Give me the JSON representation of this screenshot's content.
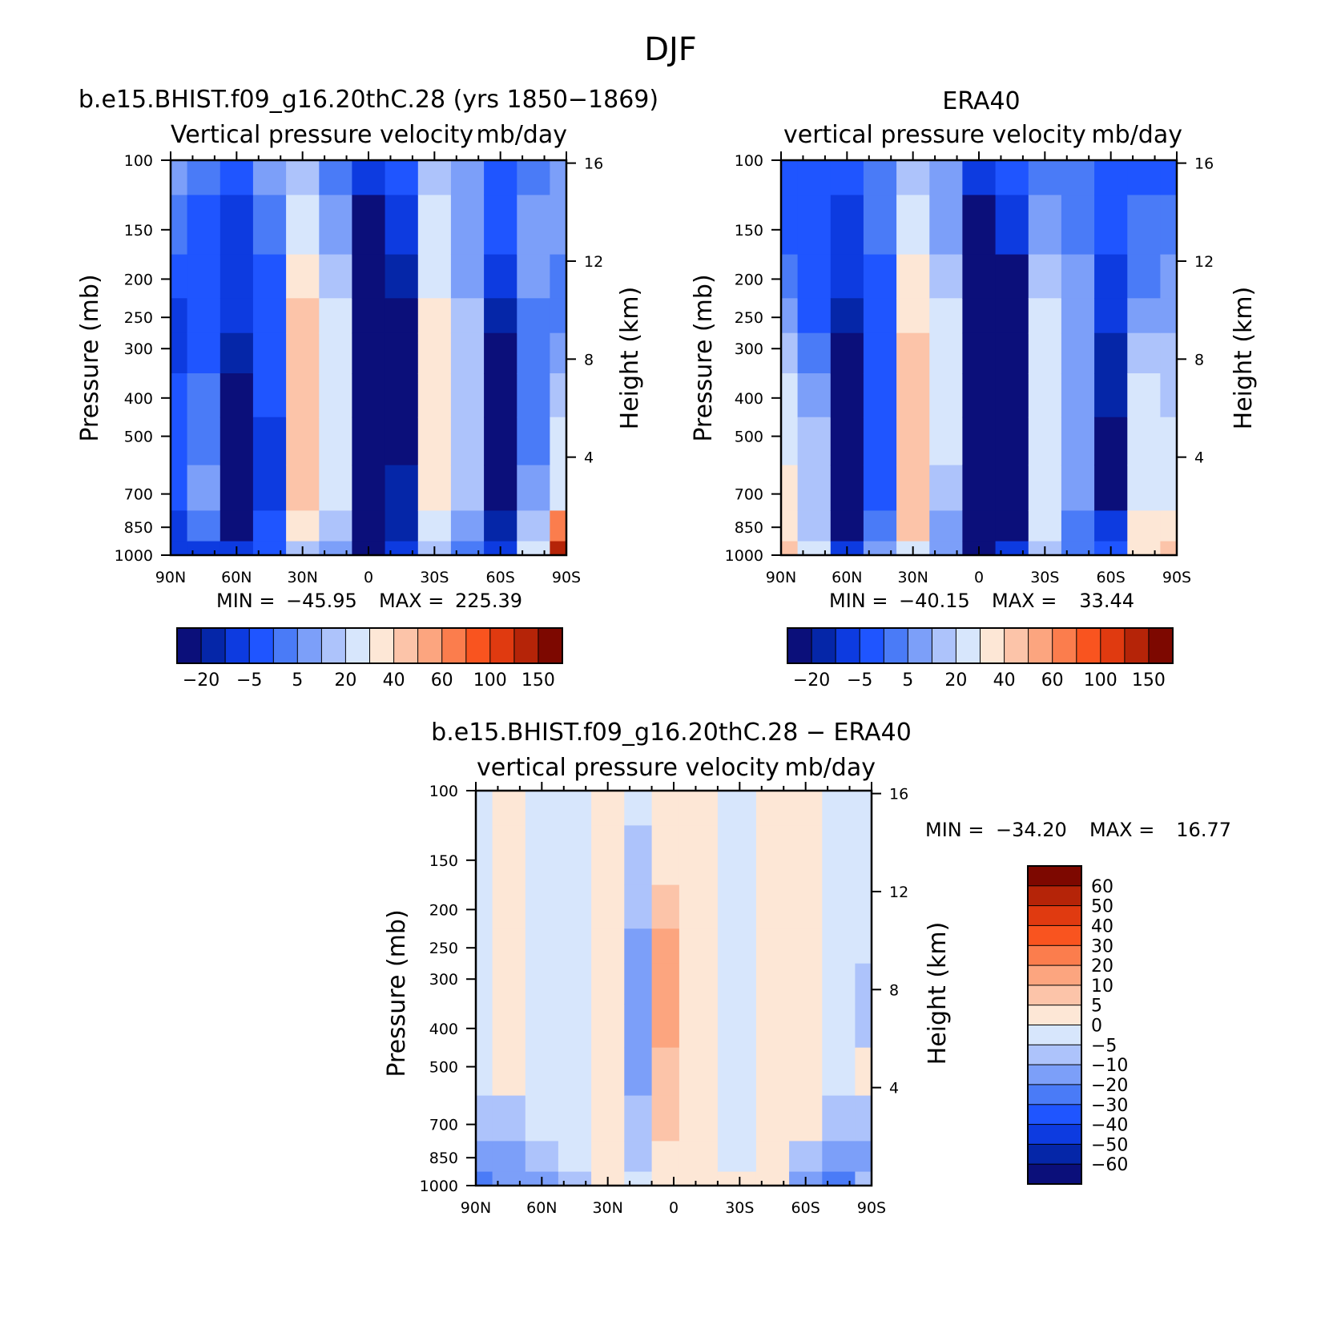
{
  "figure": {
    "title": "DJF"
  },
  "chart_data": [
    {
      "type": "heatmap",
      "title": "b.e15.BHIST.f09_g16.20thC.28 (yrs 1850-1869)",
      "subtitle_left": "Vertical pressure velocity",
      "subtitle_right": "mb/day",
      "ylabel": "Pressure (mb)",
      "y2label": "Height (km)",
      "x_ticks": [
        "90N",
        "60N",
        "30N",
        "0",
        "30S",
        "60S",
        "90S"
      ],
      "y_ticks": [
        100,
        150,
        200,
        250,
        300,
        400,
        500,
        700,
        850,
        1000
      ],
      "y2_ticks": [
        16,
        12,
        8,
        4
      ],
      "min_label": "MIN =",
      "min": "-45.95",
      "max_label": "MAX =",
      "max": "225.39",
      "colorbar_labels": [
        "-20",
        "-5",
        "5",
        "20",
        "40",
        "60",
        "100",
        "150"
      ],
      "colorbar_colors": [
        "#0b0f7a",
        "#0526a8",
        "#0d3be0",
        "#1f55ff",
        "#4a7bf7",
        "#7c9ff9",
        "#adc3fb",
        "#d7e6fc",
        "#fde7d6",
        "#fcc4a9",
        "#fca57f",
        "#fb7d4d",
        "#f9541f",
        "#e03a10",
        "#b52408",
        "#7d0800"
      ],
      "profile": [
        {
          "lat": 90,
          "values": [
            5,
            0,
            -5,
            -10,
            -10,
            -5,
            -5,
            -5,
            -10,
            -10
          ]
        },
        {
          "lat": 75,
          "values": [
            0,
            -5,
            -5,
            -5,
            -5,
            0,
            0,
            5,
            0,
            -10
          ]
        },
        {
          "lat": 60,
          "values": [
            -5,
            -10,
            -10,
            -10,
            -15,
            -20,
            -20,
            -20,
            -20,
            -10
          ]
        },
        {
          "lat": 45,
          "values": [
            5,
            0,
            -5,
            -5,
            -5,
            -5,
            -10,
            -10,
            -5,
            -5
          ]
        },
        {
          "lat": 30,
          "values": [
            10,
            20,
            30,
            35,
            40,
            40,
            40,
            40,
            30,
            10
          ]
        },
        {
          "lat": 15,
          "values": [
            0,
            5,
            10,
            15,
            20,
            20,
            15,
            15,
            10,
            5
          ]
        },
        {
          "lat": 0,
          "values": [
            -10,
            -20,
            -30,
            -35,
            -40,
            -40,
            -40,
            -40,
            -35,
            -20
          ]
        },
        {
          "lat": -15,
          "values": [
            -5,
            -10,
            -15,
            -20,
            -20,
            -20,
            -20,
            -15,
            -15,
            -10
          ]
        },
        {
          "lat": -30,
          "values": [
            10,
            15,
            20,
            25,
            30,
            30,
            30,
            25,
            20,
            10
          ]
        },
        {
          "lat": -45,
          "values": [
            5,
            5,
            5,
            10,
            10,
            10,
            10,
            10,
            5,
            0
          ]
        },
        {
          "lat": -60,
          "values": [
            -5,
            -5,
            -10,
            -15,
            -20,
            -20,
            -20,
            -20,
            -15,
            -10
          ]
        },
        {
          "lat": -75,
          "values": [
            0,
            5,
            5,
            0,
            0,
            0,
            0,
            5,
            10,
            20
          ]
        },
        {
          "lat": -90,
          "values": [
            5,
            5,
            0,
            0,
            5,
            10,
            15,
            20,
            60,
            150
          ]
        }
      ]
    },
    {
      "type": "heatmap",
      "title": "ERA40",
      "subtitle_left": "vertical pressure velocity",
      "subtitle_right": "mb/day",
      "ylabel": "Pressure (mb)",
      "y2label": "Height (km)",
      "x_ticks": [
        "90N",
        "60N",
        "30N",
        "0",
        "30S",
        "60S",
        "90S"
      ],
      "y_ticks": [
        100,
        150,
        200,
        250,
        300,
        400,
        500,
        700,
        850,
        1000
      ],
      "y2_ticks": [
        16,
        12,
        8,
        4
      ],
      "min_label": "MIN =",
      "min": "-40.15",
      "max_label": "MAX =",
      "max": "33.44",
      "colorbar_labels": [
        "-20",
        "-5",
        "5",
        "20",
        "40",
        "60",
        "100",
        "150"
      ],
      "colorbar_colors": [
        "#0b0f7a",
        "#0526a8",
        "#0d3be0",
        "#1f55ff",
        "#4a7bf7",
        "#7c9ff9",
        "#adc3fb",
        "#d7e6fc",
        "#fde7d6",
        "#fcc4a9",
        "#fca57f",
        "#fb7d4d",
        "#f9541f",
        "#e03a10",
        "#b52408",
        "#7d0800"
      ],
      "profile": [
        {
          "lat": 90,
          "values": [
            -5,
            -5,
            0,
            5,
            10,
            15,
            20,
            25,
            30,
            40
          ]
        },
        {
          "lat": 75,
          "values": [
            -5,
            -5,
            -5,
            -5,
            0,
            5,
            10,
            10,
            10,
            15
          ]
        },
        {
          "lat": 60,
          "values": [
            -5,
            -10,
            -10,
            -15,
            -20,
            -20,
            -20,
            -20,
            -20,
            -10
          ]
        },
        {
          "lat": 45,
          "values": [
            0,
            0,
            -5,
            -5,
            -5,
            -5,
            -5,
            -5,
            0,
            5
          ]
        },
        {
          "lat": 30,
          "values": [
            10,
            20,
            25,
            30,
            40,
            40,
            40,
            40,
            35,
            20
          ]
        },
        {
          "lat": 15,
          "values": [
            5,
            5,
            10,
            15,
            20,
            20,
            15,
            10,
            5,
            5
          ]
        },
        {
          "lat": 0,
          "values": [
            -10,
            -20,
            -25,
            -30,
            -30,
            -35,
            -35,
            -40,
            -40,
            -25
          ]
        },
        {
          "lat": -15,
          "values": [
            -5,
            -10,
            -20,
            -30,
            -40,
            -40,
            -40,
            -35,
            -20,
            -10
          ]
        },
        {
          "lat": -30,
          "values": [
            0,
            5,
            10,
            15,
            20,
            20,
            20,
            20,
            15,
            10
          ]
        },
        {
          "lat": -45,
          "values": [
            0,
            0,
            5,
            5,
            5,
            5,
            5,
            5,
            0,
            0
          ]
        },
        {
          "lat": -60,
          "values": [
            -5,
            -5,
            -10,
            -10,
            -15,
            -15,
            -20,
            -20,
            -10,
            -5
          ]
        },
        {
          "lat": -75,
          "values": [
            -5,
            0,
            0,
            5,
            10,
            15,
            20,
            20,
            25,
            30
          ]
        },
        {
          "lat": -90,
          "values": [
            -5,
            0,
            5,
            5,
            10,
            10,
            15,
            20,
            30,
            40
          ]
        }
      ]
    },
    {
      "type": "heatmap",
      "title": "b.e15.BHIST.f09_g16.20thC.28 - ERA40",
      "subtitle_left": "vertical pressure velocity",
      "subtitle_right": "mb/day",
      "ylabel": "Pressure (mb)",
      "y2label": "Height (km)",
      "x_ticks": [
        "90N",
        "60N",
        "30N",
        "0",
        "30S",
        "60S",
        "90S"
      ],
      "y_ticks": [
        100,
        150,
        200,
        250,
        300,
        400,
        500,
        700,
        850,
        1000
      ],
      "y2_ticks": [
        16,
        12,
        8,
        4
      ],
      "min_label": "MIN =",
      "min": "-34.20",
      "max_label": "MAX =",
      "max": "16.77",
      "colorbar_labels": [
        "60",
        "50",
        "40",
        "30",
        "20",
        "10",
        "5",
        "0",
        "-5",
        "-10",
        "-20",
        "-30",
        "-40",
        "-50",
        "-60"
      ],
      "colorbar_colors": [
        "#7d0800",
        "#b52408",
        "#e03a10",
        "#f9541f",
        "#fb7d4d",
        "#fca57f",
        "#fcc4a9",
        "#fde7d6",
        "#d7e6fc",
        "#adc3fb",
        "#7c9ff9",
        "#4a7bf7",
        "#1f55ff",
        "#0d3be0",
        "#0526a8",
        "#0b0f7a"
      ],
      "profile": [
        {
          "lat": 90,
          "values": [
            -2,
            -2,
            -2,
            -2,
            -2,
            -2,
            -2,
            -5,
            -10,
            -20
          ]
        },
        {
          "lat": 75,
          "values": [
            2,
            2,
            2,
            2,
            2,
            2,
            2,
            -5,
            -10,
            -15
          ]
        },
        {
          "lat": 60,
          "values": [
            -2,
            -2,
            -2,
            -2,
            -2,
            -2,
            -2,
            -2,
            -5,
            -10
          ]
        },
        {
          "lat": 45,
          "values": [
            -2,
            -2,
            -2,
            -2,
            -2,
            -2,
            -2,
            -2,
            -2,
            -5
          ]
        },
        {
          "lat": 30,
          "values": [
            2,
            2,
            2,
            2,
            2,
            2,
            2,
            2,
            2,
            2
          ]
        },
        {
          "lat": 15,
          "values": [
            -2,
            -5,
            -5,
            -10,
            -10,
            -10,
            -10,
            -5,
            -5,
            -2
          ]
        },
        {
          "lat": 5,
          "values": [
            2,
            5,
            10,
            15,
            15,
            15,
            10,
            10,
            5,
            2
          ]
        },
        {
          "lat": -10,
          "values": [
            2,
            2,
            2,
            2,
            2,
            2,
            2,
            2,
            2,
            2
          ]
        },
        {
          "lat": -30,
          "values": [
            -2,
            -2,
            -2,
            -2,
            -2,
            -2,
            -2,
            -2,
            -2,
            2
          ]
        },
        {
          "lat": -45,
          "values": [
            2,
            2,
            2,
            2,
            2,
            2,
            2,
            2,
            2,
            2
          ]
        },
        {
          "lat": -60,
          "values": [
            2,
            2,
            2,
            2,
            2,
            2,
            2,
            2,
            -5,
            -10
          ]
        },
        {
          "lat": -75,
          "values": [
            -2,
            -2,
            -2,
            -2,
            -2,
            -2,
            -2,
            -5,
            -10,
            -20
          ]
        },
        {
          "lat": -90,
          "values": [
            -2,
            -2,
            -2,
            -2,
            -5,
            -5,
            2,
            -5,
            -10,
            -5
          ]
        }
      ]
    }
  ]
}
